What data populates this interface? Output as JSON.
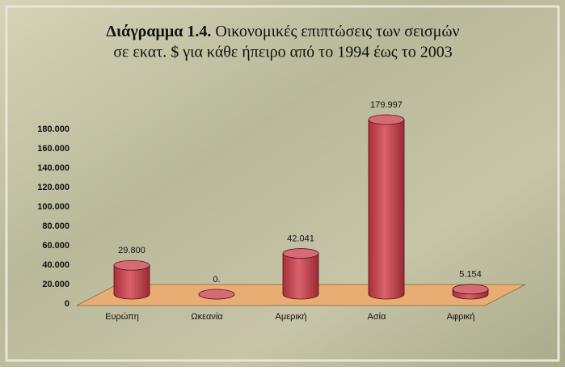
{
  "chart_data": {
    "type": "bar3d",
    "title": [
      "Διάγραμμα 1.4.",
      "Οικονομικές επιπτώσεις των σεισμών",
      "σε εκατ. $ για κάθε ήπειρο από το 1994 έως το 2003"
    ],
    "categories": [
      "Ευρώπη",
      "Ωκεανία",
      "Αμερική",
      "Ασία",
      "Αφρική"
    ],
    "values": [
      29800,
      0,
      42041,
      179997,
      5154
    ],
    "value_labels": [
      "29.800",
      "0.",
      "42.041",
      "179.997",
      "5.154"
    ],
    "color": "#c8454f",
    "ylim": [
      0,
      180000
    ],
    "yticks": [
      0,
      {
        "value": 20000,
        "label": "20.000"
      },
      {
        "value": 40000,
        "label": "40.000"
      },
      {
        "value": 60000,
        "label": "60.000"
      },
      {
        "value": 80000,
        "label": "80.000"
      },
      {
        "value": 100000,
        "label": "100.000"
      },
      {
        "value": 120000,
        "label": "120.000"
      },
      {
        "value": 140000,
        "label": "140.000"
      },
      {
        "value": 160000,
        "label": "160.000"
      },
      {
        "value": 180000,
        "label": "180.000"
      }
    ],
    "grid": false
  }
}
